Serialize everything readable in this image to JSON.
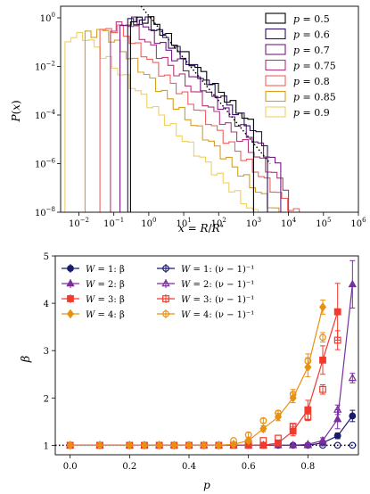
{
  "chart_data": [
    {
      "type": "line",
      "subtype": "step-histogram",
      "xlabel": "x = R/R⋆",
      "ylabel": "P(x)",
      "xscale": "log",
      "yscale": "log",
      "xlim": [
        0.003,
        1000000
      ],
      "ylim": [
        1e-08,
        3
      ],
      "x_ticks": [
        {
          "value": 0.01,
          "base": "10",
          "exp": "−2"
        },
        {
          "value": 0.1,
          "base": "10",
          "exp": "−1"
        },
        {
          "value": 1,
          "base": "10",
          "exp": "0"
        },
        {
          "value": 10,
          "base": "10",
          "exp": "1"
        },
        {
          "value": 100,
          "base": "10",
          "exp": "2"
        },
        {
          "value": 1000,
          "base": "10",
          "exp": "3"
        },
        {
          "value": 10000,
          "base": "10",
          "exp": "4"
        },
        {
          "value": 100000,
          "base": "10",
          "exp": "5"
        },
        {
          "value": 1000000,
          "base": "10",
          "exp": "6"
        }
      ],
      "y_ticks": [
        {
          "value": 1,
          "base": "10",
          "exp": "0"
        },
        {
          "value": 0.01,
          "base": "10",
          "exp": "−2"
        },
        {
          "value": 0.0001,
          "base": "10",
          "exp": "−4"
        },
        {
          "value": 1e-06,
          "base": "10",
          "exp": "−6"
        },
        {
          "value": 1e-08,
          "base": "10",
          "exp": "−8"
        }
      ],
      "legend_position": "top-right",
      "reference_line": {
        "style": "dotted",
        "color": "#000000",
        "x": [
          0.6,
          3000
        ],
        "y": [
          3,
          1e-06
        ]
      },
      "series": [
        {
          "name": "p = 0.5",
          "param": "p",
          "value": "0.5",
          "color": "#000004",
          "x_min": 0.3,
          "x_max": 1000,
          "y_peak": 1.0,
          "y_min": 2e-08
        },
        {
          "name": "p = 0.6",
          "param": "p",
          "value": "0.6",
          "color": "#2c115f",
          "x_min": 0.25,
          "x_max": 2500,
          "y_peak": 0.9,
          "y_min": 2e-08
        },
        {
          "name": "p = 0.7",
          "param": "p",
          "value": "0.7",
          "color": "#721f81",
          "x_min": 0.15,
          "x_max": 6000,
          "y_peak": 0.8,
          "y_min": 1.5e-08
        },
        {
          "name": "p = 0.75",
          "param": "p",
          "value": "0.75",
          "color": "#b5367a",
          "x_min": 0.08,
          "x_max": 10000,
          "y_peak": 0.6,
          "y_min": 1e-08
        },
        {
          "name": "p = 0.8",
          "param": "p",
          "value": "0.8",
          "color": "#f1605d",
          "x_min": 0.04,
          "x_max": 30000,
          "y_peak": 0.4,
          "y_min": 1e-08
        },
        {
          "name": "p = 0.85",
          "param": "p",
          "value": "0.85",
          "color": "#d4a020",
          "x_min": 0.015,
          "x_max": 80000,
          "y_peak": 0.3,
          "y_min": 1e-08
        },
        {
          "name": "p = 0.9",
          "param": "p",
          "value": "0.9",
          "color": "#f0d060",
          "x_min": 0.004,
          "x_max": 300000,
          "y_peak": 0.2,
          "y_min": 1e-08
        }
      ]
    },
    {
      "type": "scatter",
      "xlabel": "p",
      "ylabel": "β",
      "xlim": [
        -0.05,
        0.97
      ],
      "ylim": [
        0.8,
        5.0
      ],
      "x_ticks": [
        "0.0",
        "0.2",
        "0.4",
        "0.6",
        "0.8"
      ],
      "y_ticks": [
        "1",
        "2",
        "3",
        "4",
        "5"
      ],
      "legend_position": "top-left",
      "reference_line": {
        "style": "dotted",
        "color": "#000000",
        "y": 1
      },
      "series": [
        {
          "name": "W = 1: β",
          "W": "1",
          "kind": "β",
          "color": "#1a1a6e",
          "marker": "circle-filled",
          "fit_line": true,
          "x": [
            0.0,
            0.1,
            0.2,
            0.25,
            0.3,
            0.35,
            0.4,
            0.45,
            0.5,
            0.55,
            0.6,
            0.65,
            0.7,
            0.75,
            0.8,
            0.85,
            0.9,
            0.95
          ],
          "y": [
            1.0,
            1.0,
            1.0,
            1.0,
            1.0,
            1.0,
            1.0,
            1.0,
            1.0,
            1.0,
            1.0,
            1.0,
            1.0,
            1.0,
            1.0,
            1.05,
            1.2,
            1.62
          ],
          "err": [
            0,
            0,
            0,
            0,
            0,
            0,
            0,
            0,
            0,
            0,
            0,
            0,
            0,
            0,
            0,
            0.03,
            0.06,
            0.12
          ]
        },
        {
          "name": "W = 1: (ν − 1)⁻¹",
          "W": "1",
          "kind": "(ν − 1)⁻¹",
          "color": "#1a1a6e",
          "marker": "circle-open",
          "fit_line": false,
          "x": [
            0.85,
            0.9,
            0.95
          ],
          "y": [
            1.0,
            1.0,
            1.0
          ],
          "err": [
            0,
            0,
            0
          ]
        },
        {
          "name": "W = 2: β",
          "W": "2",
          "kind": "β",
          "color": "#7a2e9e",
          "marker": "triangle-filled",
          "fit_line": true,
          "x": [
            0.0,
            0.1,
            0.2,
            0.25,
            0.3,
            0.35,
            0.4,
            0.45,
            0.5,
            0.55,
            0.6,
            0.65,
            0.7,
            0.75,
            0.8,
            0.85,
            0.9,
            0.95
          ],
          "y": [
            1.0,
            1.0,
            1.0,
            1.0,
            1.0,
            1.0,
            1.0,
            1.0,
            1.0,
            1.0,
            1.0,
            1.0,
            1.0,
            1.0,
            1.02,
            1.1,
            1.55,
            4.4
          ],
          "err": [
            0,
            0,
            0,
            0,
            0,
            0,
            0,
            0,
            0,
            0,
            0,
            0,
            0,
            0,
            0.03,
            0.06,
            0.2,
            0.5
          ]
        },
        {
          "name": "W = 2: (ν − 1)⁻¹",
          "W": "2",
          "kind": "(ν − 1)⁻¹",
          "color": "#7a2e9e",
          "marker": "triangle-open",
          "fit_line": false,
          "x": [
            0.8,
            0.85,
            0.9,
            0.95
          ],
          "y": [
            1.0,
            1.05,
            1.75,
            2.42
          ],
          "err": [
            0,
            0.05,
            0.1,
            0.1
          ]
        },
        {
          "name": "W = 3: β",
          "W": "3",
          "kind": "β",
          "color": "#f03a2e",
          "marker": "square-filled",
          "fit_line": true,
          "x": [
            0.0,
            0.1,
            0.2,
            0.25,
            0.3,
            0.35,
            0.4,
            0.45,
            0.5,
            0.55,
            0.6,
            0.65,
            0.7,
            0.75,
            0.8,
            0.85,
            0.9
          ],
          "y": [
            1.0,
            1.0,
            1.0,
            1.0,
            1.0,
            1.0,
            1.0,
            1.0,
            1.0,
            1.0,
            1.0,
            1.0,
            1.05,
            1.3,
            1.75,
            2.8,
            3.82
          ],
          "err": [
            0,
            0,
            0,
            0,
            0,
            0,
            0,
            0,
            0,
            0,
            0,
            0,
            0.03,
            0.1,
            0.2,
            0.3,
            0.6
          ]
        },
        {
          "name": "W = 3: (ν − 1)⁻¹",
          "W": "3",
          "kind": "(ν − 1)⁻¹",
          "color": "#f03a2e",
          "marker": "square-open",
          "fit_line": false,
          "x": [
            0.6,
            0.65,
            0.7,
            0.75,
            0.8,
            0.85,
            0.9
          ],
          "y": [
            1.05,
            1.1,
            1.15,
            1.4,
            1.6,
            2.18,
            3.22
          ],
          "err": [
            0,
            0,
            0,
            0.05,
            0.08,
            0.1,
            0.2
          ]
        },
        {
          "name": "W = 4: β",
          "W": "4",
          "kind": "β",
          "color": "#e89010",
          "marker": "diamond-filled",
          "fit_line": true,
          "x": [
            0.0,
            0.1,
            0.2,
            0.25,
            0.3,
            0.35,
            0.4,
            0.45,
            0.5,
            0.55,
            0.6,
            0.65,
            0.7,
            0.75,
            0.8,
            0.85
          ],
          "y": [
            1.0,
            1.0,
            1.0,
            1.0,
            1.0,
            1.0,
            1.0,
            1.0,
            1.0,
            1.02,
            1.1,
            1.35,
            1.6,
            2.0,
            2.65,
            3.92
          ],
          "err": [
            0,
            0,
            0,
            0,
            0,
            0,
            0,
            0,
            0,
            0.02,
            0.04,
            0.06,
            0.08,
            0.1,
            0.2,
            0.15
          ]
        },
        {
          "name": "W = 4: (ν − 1)⁻¹",
          "W": "4",
          "kind": "(ν − 1)⁻¹",
          "color": "#e89010",
          "marker": "circle-open",
          "fit_line": false,
          "x": [
            0.55,
            0.6,
            0.65,
            0.7,
            0.75,
            0.8,
            0.85
          ],
          "y": [
            1.1,
            1.22,
            1.52,
            1.68,
            2.08,
            2.78,
            3.28
          ],
          "err": [
            0,
            0.05,
            0.05,
            0.05,
            0.1,
            0.15,
            0.1
          ]
        }
      ]
    }
  ]
}
